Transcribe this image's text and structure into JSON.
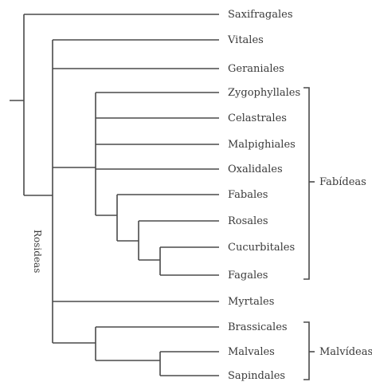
{
  "tree": {
    "root_clade_label": "Rosideas",
    "taxa": [
      "Saxifragales",
      "Vitales",
      "Geraniales",
      "Zygophyllales",
      "Celastrales",
      "Malpighiales",
      "Oxalidales",
      "Fabales",
      "Rosales",
      "Cucurbitales",
      "Fagales",
      "Myrtales",
      "Brassicales",
      "Malvales",
      "Sapindales"
    ],
    "groups": [
      {
        "label": "Fabídeas",
        "first_taxon": "Zygophyllales",
        "last_taxon": "Fagales"
      },
      {
        "label": "Malvídeas",
        "first_taxon": "Brassicales",
        "last_taxon": "Sapindales"
      }
    ]
  }
}
